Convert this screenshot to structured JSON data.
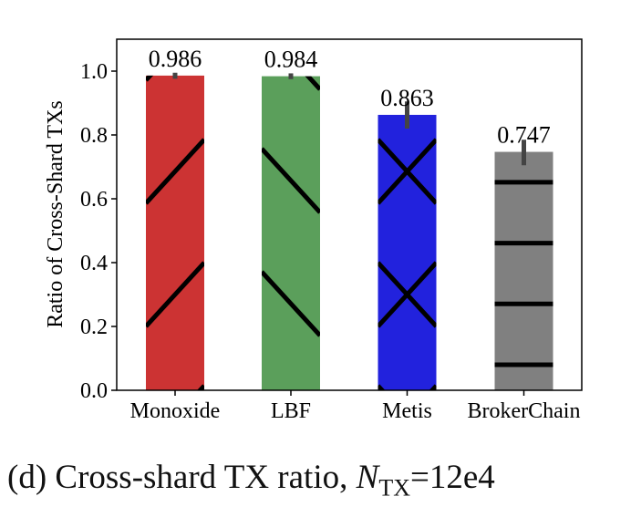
{
  "chart_data": {
    "type": "bar",
    "categories": [
      "Monoxide",
      "LBF",
      "Metis",
      "BrokerChain"
    ],
    "values": [
      0.986,
      0.984,
      0.863,
      0.747
    ],
    "data_labels": [
      "0.986",
      "0.984",
      "0.863",
      "0.747"
    ],
    "error_bars": [
      [
        0.976,
        0.995
      ],
      [
        0.975,
        0.993
      ],
      [
        0.82,
        0.905
      ],
      [
        0.705,
        0.785
      ]
    ],
    "colors": [
      "#cc3333",
      "#5b9f5b",
      "#2222dd",
      "#808080"
    ],
    "hatches": [
      "/",
      "\\",
      "x",
      "-"
    ],
    "ylabel": "Ratio of Cross-Shard TXs",
    "xlabel": "",
    "ylim": [
      0,
      1.1
    ],
    "yticks": [
      "0.0",
      "0.2",
      "0.4",
      "0.6",
      "0.8",
      "1.0"
    ],
    "grid": false,
    "legend": "none"
  },
  "caption": {
    "prefix": "(d) Cross-shard TX ratio, ",
    "var": "N",
    "sub": "TX",
    "suffix": "=12e4"
  }
}
